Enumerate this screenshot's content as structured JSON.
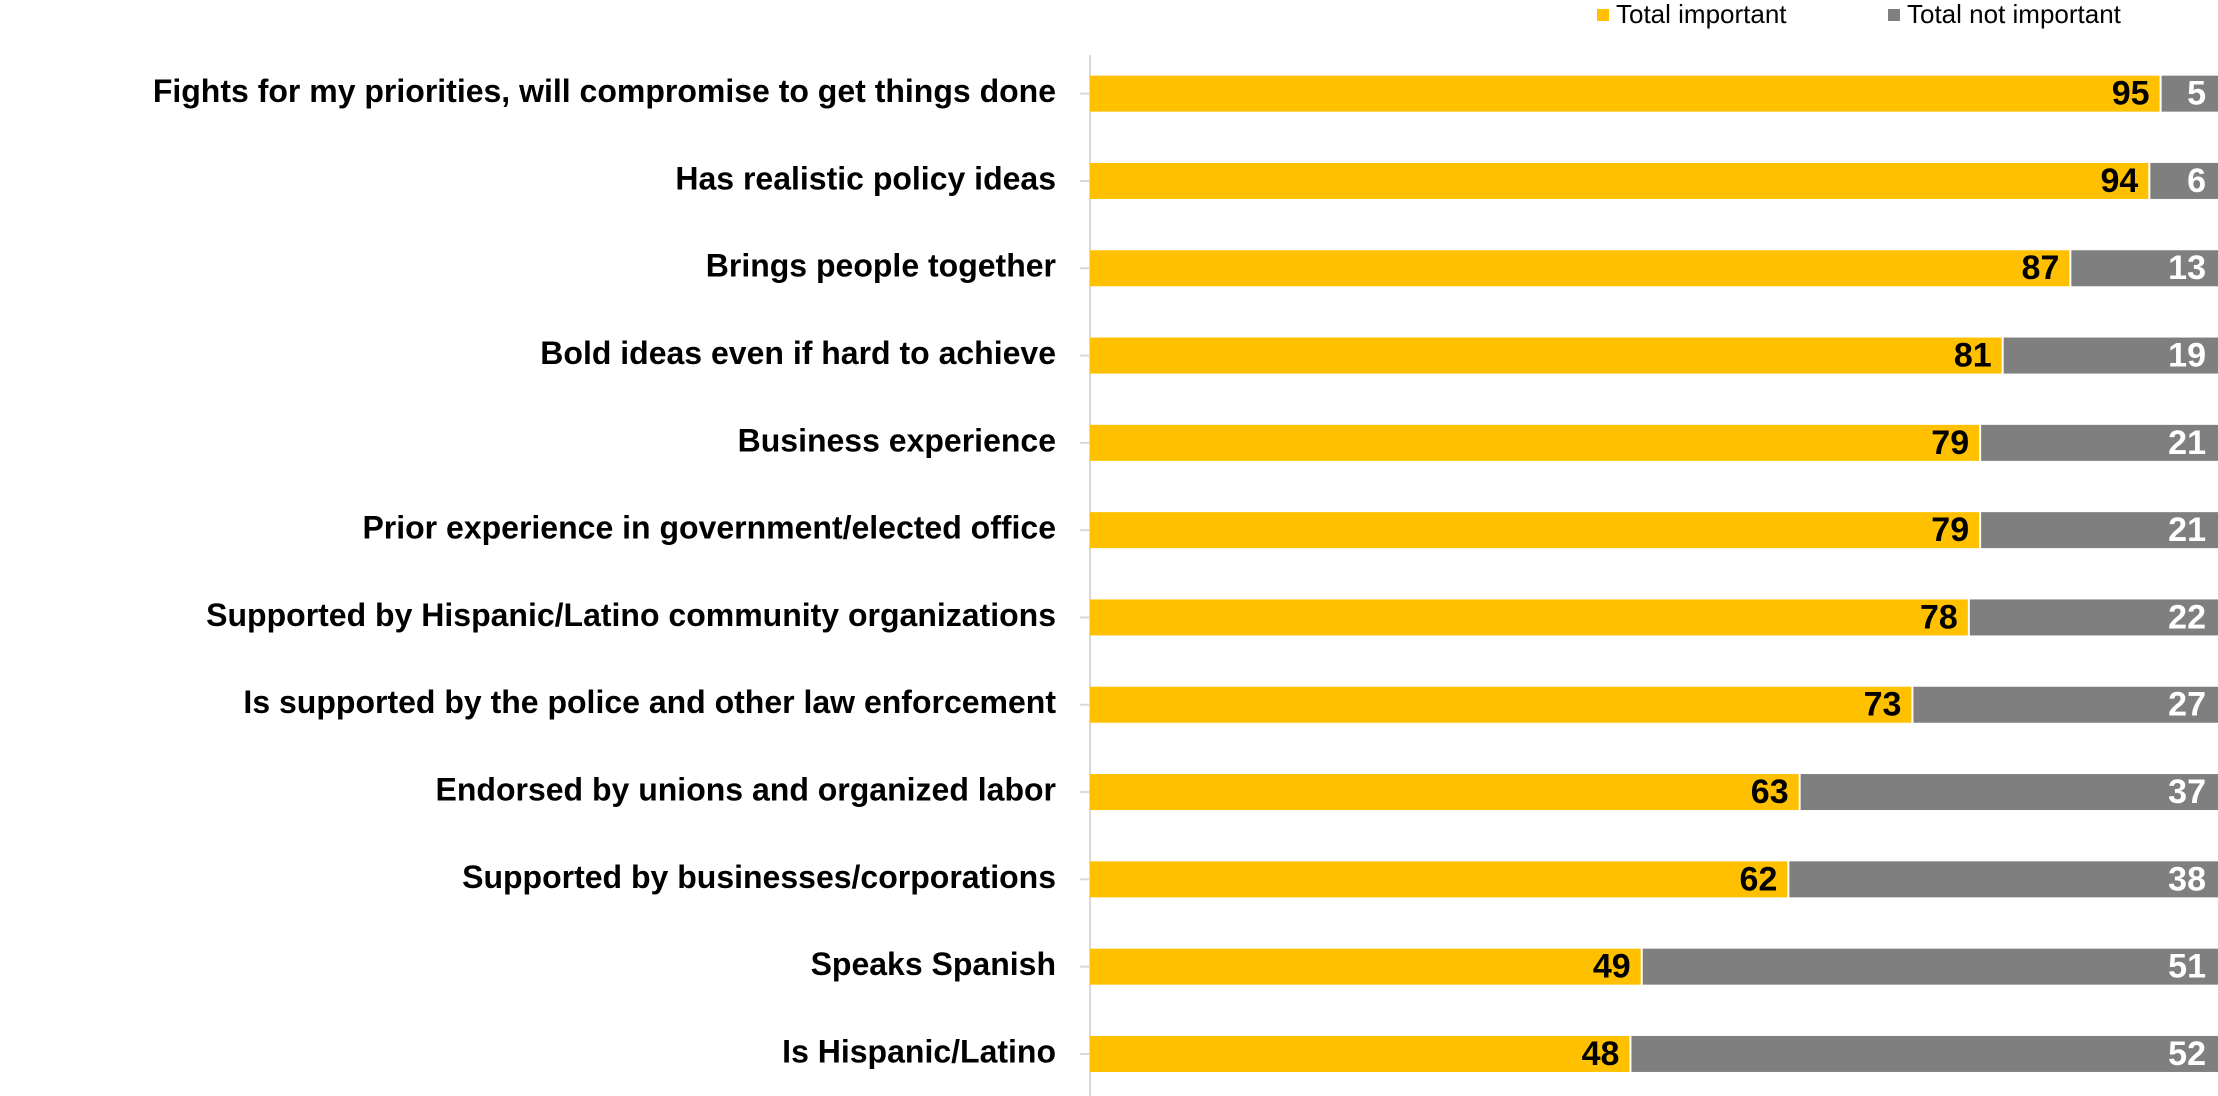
{
  "chart_data": {
    "type": "bar",
    "orientation": "horizontal",
    "stacked": true,
    "categories": [
      "Fights for my priorities, will compromise to get things done",
      "Has realistic policy ideas",
      "Brings people together",
      "Bold ideas even if hard to achieve",
      "Business experience",
      "Prior experience in government/elected office",
      "Supported by Hispanic/Latino community organizations",
      "Is supported by the police and other law enforcement",
      "Endorsed by unions and organized labor",
      "Supported by businesses/corporations",
      "Speaks Spanish",
      "Is Hispanic/Latino"
    ],
    "series": [
      {
        "name": "Total important",
        "color": "#FFC000",
        "label_color": "#000000",
        "values": [
          95,
          94,
          87,
          81,
          79,
          79,
          78,
          73,
          63,
          62,
          49,
          48
        ]
      },
      {
        "name": "Total not important",
        "color": "#7F7F7F",
        "label_color": "#FFFFFF",
        "values": [
          5,
          6,
          13,
          19,
          21,
          21,
          22,
          27,
          37,
          38,
          51,
          52
        ]
      }
    ],
    "xlim": [
      0,
      100
    ],
    "grid": false,
    "legend_position": "top-right",
    "data_labels": true,
    "title": "",
    "xlabel": "",
    "ylabel": ""
  }
}
